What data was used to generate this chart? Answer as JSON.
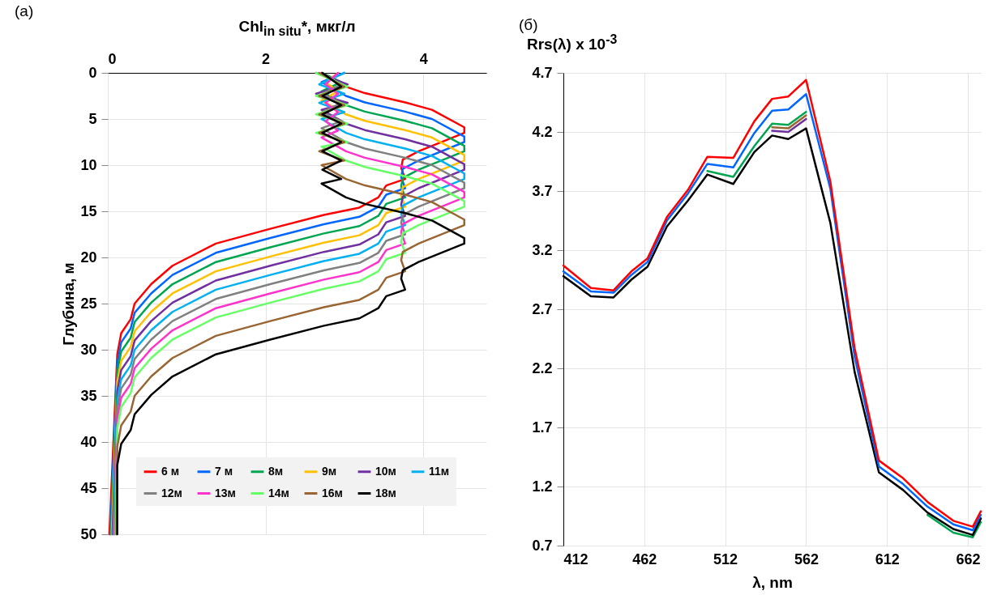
{
  "chart_data": [
    {
      "type": "line",
      "title": "(a)",
      "xlabel": "Chl$_{in situ}$*, мкг/л",
      "ylabel": "Глубина, м",
      "xlim": [
        0,
        4.8
      ],
      "xticks": [
        0,
        2,
        4
      ],
      "ylim": [
        50,
        0
      ],
      "yticks": [
        0,
        5,
        10,
        15,
        20,
        25,
        30,
        35,
        40,
        45,
        50
      ],
      "grid": true,
      "legend": "bottom",
      "series": [
        {
          "name": "6 м",
          "color": "#ff0000",
          "x": [
            2.71,
            3.02,
            3.26,
            3.77,
            4.11,
            4.52,
            4.52,
            3.94,
            3.74,
            3.72,
            3.77,
            3.53,
            3.43,
            3.19,
            2.74,
            2.06,
            1.37,
            0.82,
            0.55,
            0.34,
            0.29,
            0.17,
            0.12,
            0.02
          ],
          "values": [
            0,
            1.5,
            2.2,
            3.2,
            4,
            5.9,
            6.5,
            8.5,
            9.4,
            10.3,
            11.5,
            12.2,
            13.5,
            14.6,
            15.4,
            16.9,
            18.5,
            20.9,
            22.9,
            25,
            26.7,
            28.2,
            30.5,
            50
          ]
        },
        {
          "name": "7 м",
          "color": "#0066ff",
          "x": [
            3.0,
            2.71,
            3.02,
            3.26,
            3.77,
            4.11,
            4.52,
            4.52,
            3.94,
            3.74,
            3.72,
            3.77,
            3.53,
            3.43,
            3.19,
            2.74,
            2.06,
            1.37,
            0.82,
            0.55,
            0.34,
            0.29,
            0.17,
            0.12,
            0.03
          ],
          "values": [
            0,
            1,
            2.5,
            3.2,
            4.2,
            5,
            6.9,
            7.5,
            9.5,
            10.4,
            11.3,
            12.5,
            13.2,
            14.5,
            15.6,
            16.4,
            17.9,
            19.5,
            21.9,
            23.9,
            26,
            27.7,
            29.2,
            31.5,
            50
          ]
        },
        {
          "name": "8м",
          "color": "#00a550",
          "x": [
            2.72,
            2.96,
            2.71,
            3.02,
            3.26,
            3.77,
            4.11,
            4.52,
            4.52,
            3.94,
            3.74,
            3.72,
            3.77,
            3.53,
            3.43,
            3.19,
            2.74,
            2.06,
            1.37,
            0.82,
            0.55,
            0.34,
            0.29,
            0.17,
            0.12,
            0.04
          ],
          "values": [
            0,
            1,
            2,
            3.5,
            4.2,
            5.2,
            6,
            7.9,
            8.5,
            10.5,
            11.4,
            12.3,
            13.5,
            14.2,
            15.5,
            16.6,
            17.4,
            18.9,
            20.5,
            22.9,
            24.9,
            27,
            28.7,
            30.2,
            32.5,
            50
          ]
        },
        {
          "name": "9м",
          "color": "#ffc000",
          "x": [
            2.92,
            2.76,
            2.92,
            2.71,
            3.02,
            3.26,
            3.77,
            4.11,
            4.52,
            4.52,
            3.94,
            3.74,
            3.72,
            3.77,
            3.53,
            3.43,
            3.19,
            2.74,
            2.06,
            1.37,
            0.82,
            0.55,
            0.34,
            0.29,
            0.17,
            0.12,
            0.05
          ],
          "values": [
            0,
            1,
            2,
            3,
            4.5,
            5.2,
            6.2,
            7,
            8.9,
            9.5,
            11.5,
            12.4,
            13.3,
            14.5,
            15.2,
            16.5,
            17.6,
            18.4,
            19.9,
            21.5,
            23.9,
            25.9,
            28,
            29.7,
            31.2,
            33.5,
            50
          ]
        },
        {
          "name": "10м",
          "color": "#7030a0",
          "x": [
            2.64,
            3.04,
            2.64,
            3.04,
            2.71,
            3.02,
            3.26,
            3.77,
            4.11,
            4.52,
            4.52,
            3.94,
            3.74,
            3.72,
            3.77,
            3.53,
            3.43,
            3.19,
            2.74,
            2.06,
            1.37,
            0.82,
            0.55,
            0.34,
            0.29,
            0.17,
            0.12,
            0.06
          ],
          "values": [
            0,
            1.25,
            2.25,
            3.25,
            4,
            5.5,
            6.2,
            7.2,
            8,
            9.9,
            10.5,
            12.5,
            13.4,
            14.3,
            15.5,
            16.2,
            17.5,
            18.6,
            19.4,
            20.9,
            22.5,
            24.9,
            26.9,
            29,
            30.7,
            32.2,
            34.5,
            50
          ]
        },
        {
          "name": "11м",
          "color": "#00b0f0",
          "x": [
            3.0,
            2.68,
            3.0,
            2.68,
            3.0,
            2.71,
            3.02,
            3.26,
            3.77,
            4.11,
            4.52,
            4.52,
            3.94,
            3.74,
            3.72,
            3.77,
            3.53,
            3.43,
            3.19,
            2.74,
            2.06,
            1.37,
            0.82,
            0.55,
            0.34,
            0.29,
            0.17,
            0.12,
            0.07
          ],
          "values": [
            0,
            1.25,
            2.25,
            3.25,
            4.25,
            5,
            6.5,
            7.2,
            8.2,
            9,
            10.9,
            11.5,
            13.5,
            14.4,
            15.3,
            16.5,
            17.2,
            18.5,
            19.6,
            20.4,
            21.9,
            23.5,
            25.9,
            27.9,
            30,
            31.7,
            33.2,
            35.5,
            50
          ]
        },
        {
          "name": "12м",
          "color": "#808080",
          "x": [
            2.72,
            2.96,
            2.72,
            2.96,
            2.72,
            2.96,
            2.71,
            3.02,
            3.26,
            3.77,
            4.11,
            4.52,
            4.52,
            3.94,
            3.74,
            3.72,
            3.77,
            3.53,
            3.43,
            3.19,
            2.74,
            2.06,
            1.37,
            0.82,
            0.55,
            0.34,
            0.29,
            0.17,
            0.12,
            0.08
          ],
          "values": [
            0,
            1.25,
            2.25,
            3.25,
            4.25,
            5.25,
            6,
            7.5,
            8.2,
            9.2,
            10,
            11.9,
            12.5,
            14.5,
            15.4,
            16.3,
            17.5,
            18.2,
            19.5,
            20.6,
            21.4,
            22.9,
            24.5,
            26.9,
            28.9,
            31,
            32.7,
            34.2,
            36.5,
            50
          ]
        },
        {
          "name": "13м",
          "color": "#ff33cc",
          "x": [
            2.92,
            2.76,
            2.92,
            2.76,
            2.92,
            2.76,
            2.92,
            2.71,
            3.02,
            3.26,
            3.77,
            4.11,
            4.52,
            4.52,
            3.94,
            3.74,
            3.72,
            3.77,
            3.53,
            3.43,
            3.19,
            2.74,
            2.06,
            1.37,
            0.82,
            0.55,
            0.34,
            0.29,
            0.17,
            0.12,
            0.09
          ],
          "values": [
            0,
            1.25,
            2.25,
            3.25,
            4.25,
            5.25,
            6.25,
            7,
            8.5,
            9.2,
            10.2,
            11,
            12.9,
            13.5,
            15.5,
            16.4,
            17.3,
            18.5,
            19.2,
            20.5,
            21.6,
            22.4,
            23.9,
            25.5,
            27.9,
            29.9,
            32,
            33.7,
            35.2,
            37.5,
            50
          ]
        },
        {
          "name": "14м",
          "color": "#66ff66",
          "x": [
            2.64,
            3.04,
            2.64,
            3.04,
            2.64,
            3.04,
            2.64,
            3.04,
            2.71,
            3.02,
            3.26,
            3.77,
            4.11,
            4.52,
            4.52,
            3.94,
            3.74,
            3.72,
            3.77,
            3.53,
            3.43,
            3.19,
            2.74,
            2.06,
            1.37,
            0.82,
            0.55,
            0.34,
            0.29,
            0.17,
            0.12,
            0.1
          ],
          "values": [
            0,
            1.5,
            2.5,
            3.5,
            4.5,
            5.5,
            6.5,
            7.5,
            8,
            9.5,
            10.2,
            11.2,
            12,
            13.9,
            14.5,
            16.5,
            17.4,
            18.3,
            19.5,
            20.2,
            21.5,
            22.6,
            23.4,
            24.9,
            26.5,
            28.9,
            30.9,
            33,
            34.7,
            36.2,
            38.5,
            50
          ]
        },
        {
          "name": "16м",
          "color": "#996633",
          "x": [
            2.68,
            3.0,
            2.68,
            3.0,
            2.68,
            3.0,
            2.68,
            3.0,
            2.68,
            3.0,
            2.71,
            3.02,
            3.26,
            3.77,
            4.11,
            4.52,
            4.52,
            3.94,
            3.74,
            3.72,
            3.77,
            3.53,
            3.43,
            3.19,
            2.74,
            2.06,
            1.37,
            0.82,
            0.55,
            0.34,
            0.29,
            0.17,
            0.12,
            0.11
          ],
          "values": [
            0,
            1.5,
            2.5,
            3.5,
            4.5,
            5.5,
            6.5,
            7.5,
            8.5,
            9.5,
            10,
            11.5,
            12.2,
            13.2,
            14,
            15.9,
            16.5,
            18.5,
            19.4,
            20.3,
            21.5,
            22.2,
            23.5,
            24.6,
            25.4,
            26.9,
            28.5,
            30.9,
            32.9,
            35,
            36.7,
            38.2,
            40.5,
            50
          ]
        },
        {
          "name": "18м",
          "color": "#000000",
          "x": [
            2.72,
            2.96,
            2.72,
            2.96,
            2.72,
            2.96,
            2.72,
            2.96,
            2.72,
            2.96,
            2.72,
            2.96,
            2.71,
            3.02,
            3.26,
            3.77,
            4.11,
            4.52,
            4.52,
            3.94,
            3.74,
            3.72,
            3.77,
            3.53,
            3.43,
            3.19,
            2.74,
            2.06,
            1.37,
            0.82,
            0.55,
            0.34,
            0.29,
            0.17,
            0.12,
            0.12
          ],
          "values": [
            0,
            1.5,
            2.5,
            3.5,
            4.5,
            5.5,
            6.5,
            7.5,
            8.5,
            9.5,
            10.5,
            11.5,
            12,
            13.5,
            14.2,
            15.2,
            16,
            17.9,
            18.5,
            20.5,
            21.4,
            22.3,
            23.5,
            24.2,
            25.5,
            26.6,
            27.4,
            28.9,
            30.5,
            32.9,
            34.9,
            37,
            38.7,
            40.2,
            42.5,
            50
          ]
        }
      ]
    },
    {
      "type": "line",
      "title": "(б)",
      "xlabel": "λ, nm",
      "ylabel": "Rrs(λ) x 10$^{-3}$",
      "xlim": [
        412,
        670
      ],
      "xticks": [
        412,
        462,
        512,
        562,
        612,
        662
      ],
      "ylim": [
        0.7,
        4.7
      ],
      "yticks": [
        0.7,
        1.2,
        1.7,
        2.2,
        2.7,
        3.2,
        3.7,
        4.2,
        4.7
      ],
      "grid": true,
      "x": [
        412,
        429,
        443,
        454,
        464,
        476,
        489,
        501,
        517,
        530,
        541,
        551,
        562,
        577,
        592,
        607,
        622,
        637,
        653,
        665,
        670
      ],
      "series": [
        {
          "color": "#00a550",
          "values": [
            null,
            null,
            null,
            null,
            null,
            null,
            null,
            3.87,
            3.82,
            4.08,
            4.27,
            4.26,
            4.37,
            null,
            null,
            null,
            null,
            0.96,
            0.81,
            0.77,
            0.9
          ]
        },
        {
          "color": "#996633",
          "values": [
            null,
            null,
            null,
            null,
            null,
            null,
            null,
            null,
            null,
            null,
            4.24,
            4.23,
            4.34,
            null,
            null,
            null,
            null,
            null,
            null,
            null,
            null
          ]
        },
        {
          "color": "#7030a0",
          "values": [
            null,
            null,
            null,
            null,
            null,
            null,
            null,
            null,
            null,
            null,
            4.21,
            4.2,
            4.31,
            null,
            null,
            null,
            null,
            null,
            null,
            null,
            null
          ]
        },
        {
          "color": "#000000",
          "values": [
            2.98,
            2.81,
            2.8,
            2.95,
            3.06,
            3.4,
            3.62,
            3.84,
            3.76,
            4.03,
            4.17,
            4.14,
            4.23,
            3.43,
            2.17,
            1.32,
            1.17,
            0.98,
            0.84,
            0.79,
            0.93
          ]
        },
        {
          "color": "#0066ff",
          "values": [
            3.02,
            2.85,
            2.84,
            2.99,
            3.1,
            3.45,
            3.68,
            3.93,
            3.9,
            4.19,
            4.38,
            4.39,
            4.52,
            3.72,
            2.3,
            1.37,
            1.22,
            1.03,
            0.88,
            0.83,
            0.96
          ]
        },
        {
          "color": "#ff0000",
          "values": [
            3.07,
            2.88,
            2.86,
            3.02,
            3.13,
            3.48,
            3.71,
            3.99,
            3.98,
            4.29,
            4.48,
            4.5,
            4.64,
            3.78,
            2.37,
            1.42,
            1.27,
            1.07,
            0.91,
            0.86,
            0.99
          ]
        }
      ]
    }
  ]
}
